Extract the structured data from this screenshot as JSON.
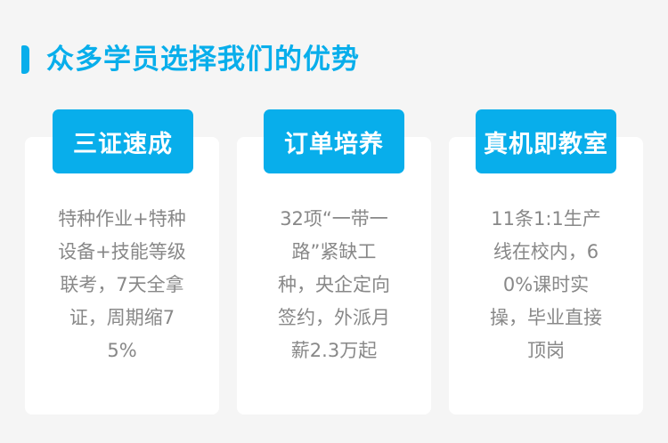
{
  "header": {
    "title": "众多学员选择我们的优势",
    "accent_color": "#08aeeb"
  },
  "cards": [
    {
      "badge": "三证速成",
      "lines": [
        "特种作业+特种",
        "设备+技能等级",
        "联考，7天全拿",
        "证，周期缩7",
        "5%"
      ]
    },
    {
      "badge": "订单培养",
      "lines": [
        "32项“一带一",
        "路”紧缺工",
        "种，央企定向",
        "签约，外派月",
        "薪2.3万起"
      ]
    },
    {
      "badge": "真机即教室",
      "lines": [
        "11条1:1生产",
        "线在校内，6",
        "0%课时实",
        "操，毕业直接",
        "顶岗"
      ]
    }
  ]
}
